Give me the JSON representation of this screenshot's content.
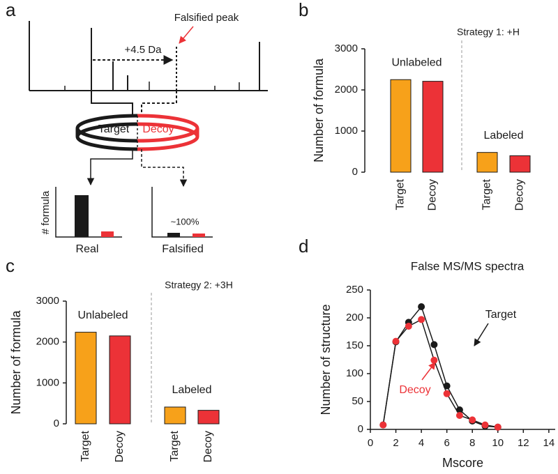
{
  "panel_labels": [
    "a",
    "b",
    "c",
    "d"
  ],
  "schematic": {
    "peak_label": "Falsified peak",
    "shift_label": "+4.5 Da",
    "ring_left": "Target",
    "ring_right": "Decoy",
    "ylabel": "# formula",
    "percent_label": "~100%",
    "left_group": "Real",
    "right_group": "Falsified"
  },
  "chart_data": [
    {
      "type": "bar",
      "title": "Strategy 1: +H",
      "ylabel": "Number of formula",
      "categories": [
        "Target",
        "Decoy",
        "Target",
        "Decoy"
      ],
      "values": [
        2250,
        2210,
        480,
        400
      ],
      "colors": [
        "#f7a11a",
        "#ec3237",
        "#f7a11a",
        "#ec3237"
      ],
      "group_labels": [
        "Unlabeled",
        "Labeled"
      ],
      "ylim": [
        0,
        3000
      ],
      "yticks": [
        0,
        1000,
        2000,
        3000
      ]
    },
    {
      "type": "bar",
      "title": "Strategy 2: +3H",
      "ylabel": "Number of formula",
      "categories": [
        "Target",
        "Decoy",
        "Target",
        "Decoy"
      ],
      "values": [
        2240,
        2150,
        410,
        330
      ],
      "colors": [
        "#f7a11a",
        "#ec3237",
        "#f7a11a",
        "#ec3237"
      ],
      "group_labels": [
        "Unlabeled",
        "Labeled"
      ],
      "ylim": [
        0,
        3000
      ],
      "yticks": [
        0,
        1000,
        2000,
        3000
      ]
    },
    {
      "type": "line",
      "title": "False MS/MS spectra",
      "xlabel": "Mscore",
      "ylabel": "Number of structure",
      "x": [
        1,
        2,
        3,
        4,
        5,
        6,
        7,
        8,
        9,
        10
      ],
      "series": [
        {
          "name": "Target",
          "color": "#1a1a1a",
          "values": [
            8,
            157,
            192,
            220,
            152,
            78,
            35,
            15,
            6,
            4
          ]
        },
        {
          "name": "Decoy",
          "color": "#ec3237",
          "values": [
            8,
            158,
            185,
            197,
            124,
            64,
            25,
            17,
            8,
            4
          ]
        }
      ],
      "xlim": [
        0,
        14.5
      ],
      "xticks": [
        0,
        2,
        4,
        6,
        8,
        10,
        12,
        14
      ],
      "ylim": [
        0,
        250
      ],
      "yticks": [
        0,
        50,
        100,
        150,
        200,
        250
      ]
    }
  ]
}
